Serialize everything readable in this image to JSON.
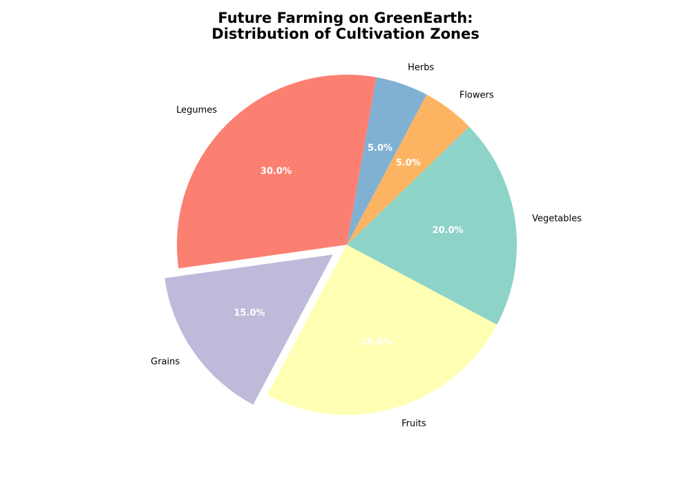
{
  "chart_data": {
    "type": "pie",
    "title_lines": [
      "Future Farming on GreenEarth:",
      "Distribution of Cultivation Zones"
    ],
    "slices": [
      {
        "label": "Legumes",
        "value": 30,
        "pct_label": "30.0%",
        "color": "#fb8072",
        "explode": false
      },
      {
        "label": "Grains",
        "value": 15,
        "pct_label": "15.0%",
        "color": "#bebada",
        "explode": true
      },
      {
        "label": "Fruits",
        "value": 25,
        "pct_label": "25.0%",
        "color": "#ffffb3",
        "explode": false
      },
      {
        "label": "Vegetables",
        "value": 20,
        "pct_label": "20.0%",
        "color": "#8dd3c7",
        "explode": false
      },
      {
        "label": "Flowers",
        "value": 5,
        "pct_label": "5.0%",
        "color": "#fdb462",
        "explode": false
      },
      {
        "label": "Herbs",
        "value": 5,
        "pct_label": "5.0%",
        "color": "#80b1d3",
        "explode": false
      }
    ],
    "legend": "none"
  }
}
